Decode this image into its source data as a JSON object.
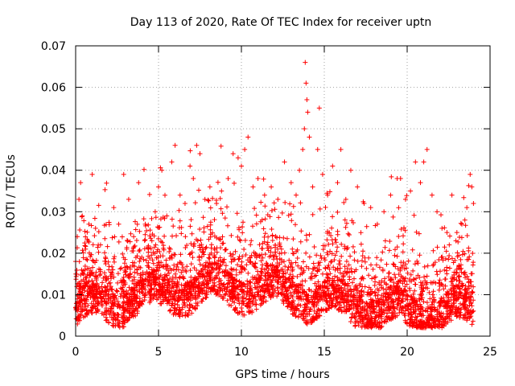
{
  "chart_data": {
    "type": "scatter",
    "title": "Day 113 of 2020, Rate Of TEC Index for receiver uptn",
    "xlabel": "GPS time / hours",
    "ylabel": "ROTI / TECUs",
    "xlim": [
      0,
      25
    ],
    "ylim": [
      0,
      0.07
    ],
    "x_ticks": [
      0,
      5,
      10,
      15,
      20,
      25
    ],
    "x_tick_labels": [
      "0",
      "5",
      "10",
      "15",
      "20",
      "25"
    ],
    "y_ticks": [
      0,
      0.01,
      0.02,
      0.03,
      0.04,
      0.05,
      0.06,
      0.07
    ],
    "y_tick_labels": [
      "0",
      "0.01",
      "0.02",
      "0.03",
      "0.04",
      "0.05",
      "0.06",
      "0.07"
    ],
    "grid": true,
    "marker": "plus",
    "point_color": "#ff0000",
    "x_data_range": [
      0,
      24
    ],
    "series": [
      {
        "points": [
          [
            0.0,
            0.018
          ],
          [
            0.1,
            0.024
          ],
          [
            0.2,
            0.033
          ],
          [
            0.3,
            0.037
          ],
          [
            0.4,
            0.029
          ],
          [
            0.6,
            0.021
          ],
          [
            0.8,
            0.027
          ],
          [
            1.0,
            0.039
          ],
          [
            1.2,
            0.026
          ],
          [
            1.5,
            0.022
          ],
          [
            1.8,
            0.019
          ],
          [
            2.0,
            0.016
          ],
          [
            2.3,
            0.031
          ],
          [
            2.6,
            0.027
          ],
          [
            2.9,
            0.039
          ],
          [
            3.2,
            0.033
          ],
          [
            3.5,
            0.024
          ],
          [
            3.8,
            0.037
          ],
          [
            4.2,
            0.027
          ],
          [
            4.6,
            0.023
          ],
          [
            4.8,
            0.03
          ],
          [
            5.0,
            0.036
          ],
          [
            5.2,
            0.04
          ],
          [
            5.5,
            0.029
          ],
          [
            5.8,
            0.042
          ],
          [
            6.0,
            0.046
          ],
          [
            6.3,
            0.034
          ],
          [
            6.6,
            0.032
          ],
          [
            6.9,
            0.041
          ],
          [
            7.1,
            0.038
          ],
          [
            7.3,
            0.046
          ],
          [
            7.5,
            0.044
          ],
          [
            7.8,
            0.033
          ],
          [
            8.1,
            0.036
          ],
          [
            8.5,
            0.032
          ],
          [
            8.8,
            0.035
          ],
          [
            9.2,
            0.038
          ],
          [
            9.5,
            0.044
          ],
          [
            9.8,
            0.043
          ],
          [
            10.0,
            0.041
          ],
          [
            10.2,
            0.045
          ],
          [
            10.4,
            0.048
          ],
          [
            10.7,
            0.036
          ],
          [
            11.0,
            0.038
          ],
          [
            11.4,
            0.034
          ],
          [
            11.8,
            0.036
          ],
          [
            12.2,
            0.033
          ],
          [
            12.6,
            0.042
          ],
          [
            13.0,
            0.037
          ],
          [
            13.3,
            0.034
          ],
          [
            13.5,
            0.04
          ],
          [
            13.7,
            0.045
          ],
          [
            13.8,
            0.05
          ],
          [
            13.85,
            0.066
          ],
          [
            13.9,
            0.061
          ],
          [
            13.95,
            0.057
          ],
          [
            14.0,
            0.054
          ],
          [
            14.1,
            0.048
          ],
          [
            14.3,
            0.036
          ],
          [
            14.6,
            0.045
          ],
          [
            14.7,
            0.055
          ],
          [
            14.9,
            0.039
          ],
          [
            15.2,
            0.034
          ],
          [
            15.5,
            0.041
          ],
          [
            15.8,
            0.037
          ],
          [
            16.0,
            0.045
          ],
          [
            16.3,
            0.033
          ],
          [
            16.6,
            0.04
          ],
          [
            17.0,
            0.036
          ],
          [
            17.4,
            0.032
          ],
          [
            17.8,
            0.031
          ],
          [
            18.2,
            0.027
          ],
          [
            18.6,
            0.03
          ],
          [
            19.0,
            0.034
          ],
          [
            19.4,
            0.038
          ],
          [
            19.6,
            0.038
          ],
          [
            19.9,
            0.033
          ],
          [
            20.2,
            0.035
          ],
          [
            20.5,
            0.042
          ],
          [
            20.8,
            0.037
          ],
          [
            21.0,
            0.042
          ],
          [
            21.2,
            0.045
          ],
          [
            21.5,
            0.034
          ],
          [
            21.8,
            0.03
          ],
          [
            22.1,
            0.026
          ],
          [
            22.4,
            0.025
          ],
          [
            22.7,
            0.034
          ],
          [
            23.0,
            0.025
          ],
          [
            23.3,
            0.027
          ],
          [
            23.6,
            0.031
          ],
          [
            23.8,
            0.039
          ],
          [
            23.9,
            0.036
          ],
          [
            24.0,
            0.032
          ]
        ]
      }
    ]
  }
}
